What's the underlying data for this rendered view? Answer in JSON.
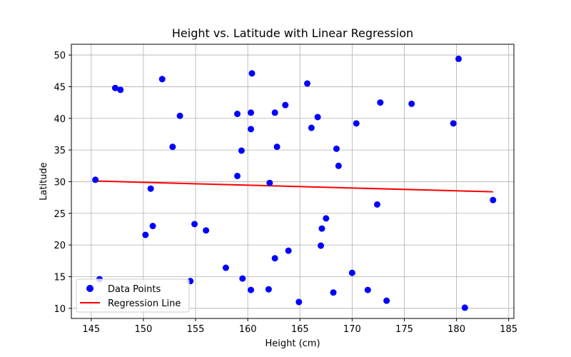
{
  "chart_data": {
    "type": "scatter",
    "title": "Height vs. Latitude with Linear Regression",
    "xlabel": "Height (cm)",
    "ylabel": "Latitude",
    "xlim": [
      143.1,
      185.5
    ],
    "ylim": [
      8.4,
      51.7
    ],
    "xticks": [
      145,
      150,
      155,
      160,
      165,
      170,
      175,
      180,
      185
    ],
    "yticks": [
      10,
      15,
      20,
      25,
      30,
      35,
      40,
      45,
      50
    ],
    "grid": true,
    "legend_position": "lower-left",
    "series": [
      {
        "name": "Data Points",
        "kind": "scatter",
        "color": "#0000ff",
        "points": [
          [
            145.4,
            30.3
          ],
          [
            145.8,
            14.6
          ],
          [
            147.3,
            44.8
          ],
          [
            147.8,
            44.5
          ],
          [
            150.2,
            21.6
          ],
          [
            150.7,
            28.9
          ],
          [
            150.9,
            23.0
          ],
          [
            151.8,
            46.2
          ],
          [
            152.8,
            35.5
          ],
          [
            153.5,
            40.4
          ],
          [
            154.5,
            14.3
          ],
          [
            154.9,
            23.3
          ],
          [
            156.0,
            22.3
          ],
          [
            157.9,
            16.4
          ],
          [
            159.0,
            30.9
          ],
          [
            159.0,
            40.7
          ],
          [
            159.4,
            34.9
          ],
          [
            159.5,
            14.7
          ],
          [
            160.3,
            40.9
          ],
          [
            160.3,
            38.3
          ],
          [
            160.4,
            47.1
          ],
          [
            160.3,
            12.9
          ],
          [
            162.0,
            13.0
          ],
          [
            162.1,
            29.8
          ],
          [
            162.6,
            40.9
          ],
          [
            162.6,
            17.9
          ],
          [
            162.8,
            35.5
          ],
          [
            163.6,
            42.1
          ],
          [
            163.9,
            19.1
          ],
          [
            164.9,
            11.0
          ],
          [
            165.7,
            45.5
          ],
          [
            166.1,
            38.5
          ],
          [
            166.7,
            40.2
          ],
          [
            167.0,
            19.9
          ],
          [
            167.1,
            22.6
          ],
          [
            167.5,
            24.2
          ],
          [
            168.2,
            12.5
          ],
          [
            168.5,
            35.2
          ],
          [
            168.7,
            32.5
          ],
          [
            170.0,
            15.6
          ],
          [
            170.4,
            39.2
          ],
          [
            171.5,
            12.9
          ],
          [
            172.4,
            26.4
          ],
          [
            172.7,
            42.5
          ],
          [
            173.3,
            11.2
          ],
          [
            175.7,
            42.3
          ],
          [
            179.7,
            39.2
          ],
          [
            180.2,
            49.4
          ],
          [
            180.8,
            10.1
          ],
          [
            183.5,
            27.1
          ]
        ]
      },
      {
        "name": "Regression Line",
        "kind": "line",
        "color": "#ff0000",
        "x": [
          145.4,
          183.5
        ],
        "y": [
          30.1,
          28.4
        ]
      }
    ]
  }
}
